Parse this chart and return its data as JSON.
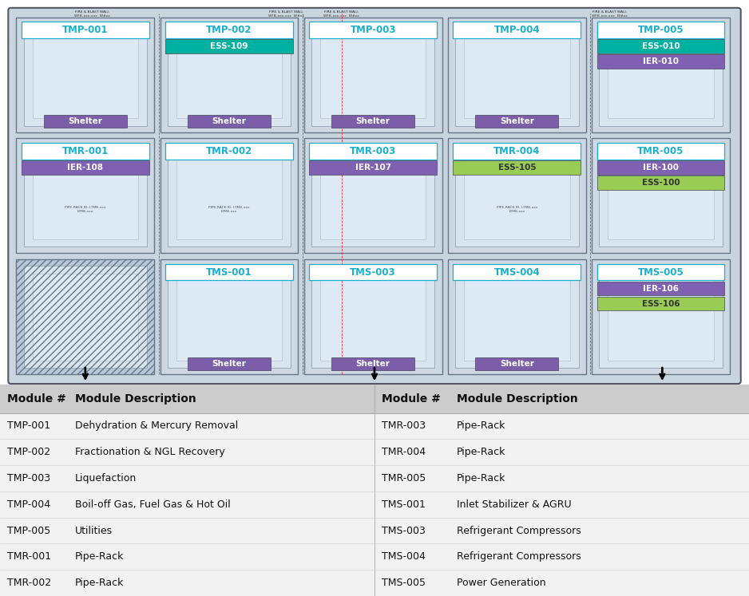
{
  "fig_width": 9.38,
  "fig_height": 7.47,
  "left_table": [
    [
      "TMP-001",
      "Dehydration & Mercury Removal"
    ],
    [
      "TMP-002",
      "Fractionation & NGL Recovery"
    ],
    [
      "TMP-003",
      "Liquefaction"
    ],
    [
      "TMP-004",
      "Boil-off Gas, Fuel Gas & Hot Oil"
    ],
    [
      "TMP-005",
      "Utilities"
    ],
    [
      "TMR-001",
      "Pipe-Rack"
    ],
    [
      "TMR-002",
      "Pipe-Rack"
    ]
  ],
  "right_table": [
    [
      "TMR-003",
      "Pipe-Rack"
    ],
    [
      "TMR-004",
      "Pipe-Rack"
    ],
    [
      "TMR-005",
      "Pipe-Rack"
    ],
    [
      "TMS-001",
      "Inlet Stabilizer & AGRU"
    ],
    [
      "TMS-003",
      "Refrigerant Compressors"
    ],
    [
      "TMS-004",
      "Refrigerant Compressors"
    ],
    [
      "TMS-005",
      "Power Generation"
    ]
  ],
  "shelter_color": "#7b5ea7",
  "cyan_color": "#1ab0cc",
  "teal_color": "#00b0a0",
  "purple_color": "#8060b0",
  "green_color": "#99cc55",
  "cell_bg": "#cdd8e3",
  "cell_border": "#8899aa",
  "inner_bg": "#d8e5ee",
  "diag_bg": "#c8d5de",
  "modules": [
    {
      "key": "TMP-001",
      "row": 0,
      "col": 0,
      "label": "TMP-001",
      "has_shelter": true,
      "extra_labels": []
    },
    {
      "key": "TMP-002",
      "row": 0,
      "col": 1,
      "label": "TMP-002",
      "has_shelter": true,
      "extra_labels": [
        {
          "text": "ESS-109",
          "color": "#00b0a0",
          "tc": "white"
        }
      ]
    },
    {
      "key": "TMP-003",
      "row": 0,
      "col": 2,
      "label": "TMP-003",
      "has_shelter": true,
      "extra_labels": []
    },
    {
      "key": "TMP-004",
      "row": 0,
      "col": 3,
      "label": "TMP-004",
      "has_shelter": true,
      "extra_labels": []
    },
    {
      "key": "TMP-005",
      "row": 0,
      "col": 4,
      "label": "TMP-005",
      "has_shelter": false,
      "extra_labels": [
        {
          "text": "ESS-010",
          "color": "#00b0a0",
          "tc": "white"
        },
        {
          "text": "IER-010",
          "color": "#8060b0",
          "tc": "white"
        }
      ]
    },
    {
      "key": "TMR-001",
      "row": 1,
      "col": 0,
      "label": "TMR-001",
      "has_shelter": false,
      "extra_labels": [
        {
          "text": "IER-108",
          "color": "#8060b0",
          "tc": "white"
        }
      ]
    },
    {
      "key": "TMR-002",
      "row": 1,
      "col": 1,
      "label": "TMR-002",
      "has_shelter": false,
      "extra_labels": []
    },
    {
      "key": "TMR-003",
      "row": 1,
      "col": 2,
      "label": "TMR-003",
      "has_shelter": false,
      "extra_labels": [
        {
          "text": "IER-107",
          "color": "#8060b0",
          "tc": "white"
        }
      ]
    },
    {
      "key": "TMR-004",
      "row": 1,
      "col": 3,
      "label": "TMR-004",
      "has_shelter": false,
      "extra_labels": [
        {
          "text": "ESS-105",
          "color": "#99cc55",
          "tc": "#333333"
        }
      ]
    },
    {
      "key": "TMR-005",
      "row": 1,
      "col": 4,
      "label": "TMR-005",
      "has_shelter": false,
      "extra_labels": [
        {
          "text": "IER-100",
          "color": "#8060b0",
          "tc": "white"
        },
        {
          "text": "ESS-100",
          "color": "#99cc55",
          "tc": "#333333"
        }
      ]
    },
    {
      "key": "TMS-001",
      "row": 2,
      "col": 1,
      "label": "TMS-001",
      "has_shelter": true,
      "extra_labels": []
    },
    {
      "key": "TMS-003",
      "row": 2,
      "col": 2,
      "label": "TMS-003",
      "has_shelter": true,
      "extra_labels": []
    },
    {
      "key": "TMS-004",
      "row": 2,
      "col": 3,
      "label": "TMS-004",
      "has_shelter": true,
      "extra_labels": []
    },
    {
      "key": "TMS-005",
      "row": 2,
      "col": 4,
      "label": "TMS-005",
      "has_shelter": false,
      "extra_labels": [
        {
          "text": "IER-106",
          "color": "#8060b0",
          "tc": "white"
        },
        {
          "text": "ESS-106",
          "color": "#99cc55",
          "tc": "#333333"
        }
      ]
    }
  ]
}
